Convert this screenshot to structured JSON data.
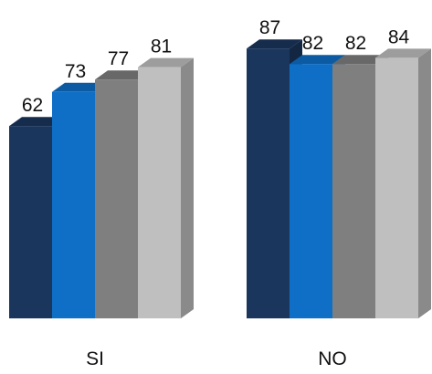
{
  "chart_data": {
    "type": "bar",
    "style": "3d-clustered-column",
    "categories": [
      "SI",
      "NO"
    ],
    "series": [
      {
        "color": "#1b365d",
        "values": [
          62,
          87
        ]
      },
      {
        "color": "#0f6fc6",
        "values": [
          73,
          82
        ]
      },
      {
        "color": "#7f7f7f",
        "values": [
          77,
          82
        ]
      },
      {
        "color": "#bfbfbf",
        "values": [
          81,
          84
        ]
      }
    ],
    "data_labels": true,
    "title": "",
    "xlabel": "",
    "ylabel": "",
    "grid": false,
    "legend": "none"
  }
}
